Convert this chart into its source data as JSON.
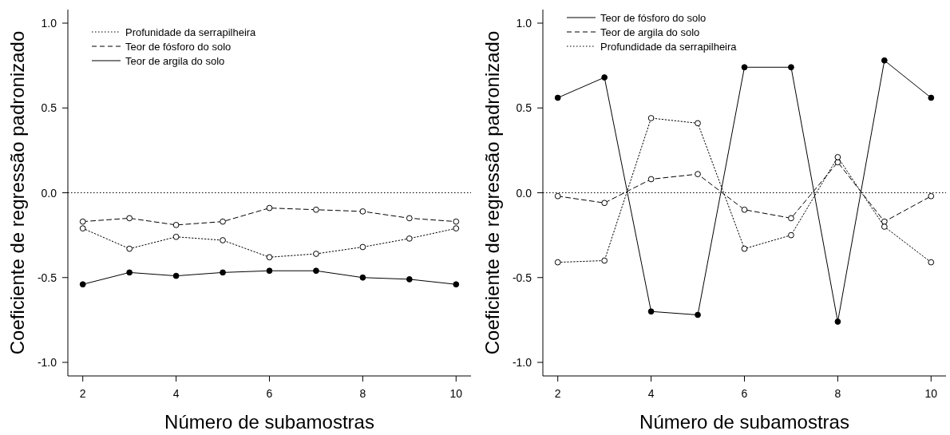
{
  "chart_data": [
    {
      "type": "line",
      "xlabel": "Número de subamostras",
      "ylabel": "Coeficiente de regressão padronizado",
      "x": [
        2,
        3,
        4,
        5,
        6,
        7,
        8,
        9,
        10
      ],
      "xlim": [
        1.68,
        10.32
      ],
      "xticks": [
        2,
        4,
        6,
        8,
        10
      ],
      "ylim": [
        -1.08,
        1.08
      ],
      "yticks": [
        {
          "value": -1,
          "label": "-1.0"
        },
        {
          "value": -0.5,
          "label": "-0.5"
        },
        {
          "value": 0,
          "label": "0.0"
        },
        {
          "value": 0.5,
          "label": "0.5"
        },
        {
          "value": 1,
          "label": "1.0"
        }
      ],
      "grid": false,
      "legend": "top left",
      "marker": "circle",
      "ref_lines": [
        {
          "axis": "y",
          "value": 0,
          "line_style": "dotted",
          "color": "#000000"
        }
      ],
      "series": [
        {
          "name": "Profunidade da serrapilheira",
          "color": "#000000",
          "line_style": "dotted",
          "values": [
            -0.21,
            -0.33,
            -0.26,
            -0.28,
            -0.38,
            -0.36,
            -0.32,
            -0.27,
            -0.21
          ]
        },
        {
          "name": "Teor de fósforo do solo",
          "color": "#000000",
          "line_style": "dashed",
          "values": [
            -0.17,
            -0.15,
            -0.19,
            -0.17,
            -0.09,
            -0.1,
            -0.11,
            -0.15,
            -0.17
          ]
        },
        {
          "name": "Teor de argila do solo",
          "color": "#000000",
          "line_style": "solid",
          "values": [
            -0.54,
            -0.47,
            -0.49,
            -0.47,
            -0.46,
            -0.46,
            -0.5,
            -0.51,
            -0.54
          ]
        }
      ]
    },
    {
      "type": "line",
      "xlabel": "Número de subamostras",
      "ylabel": "Coeficiente de regressão padronizado",
      "x": [
        2,
        3,
        4,
        5,
        6,
        7,
        8,
        9,
        10
      ],
      "xlim": [
        1.68,
        10.32
      ],
      "xticks": [
        2,
        4,
        6,
        8,
        10
      ],
      "ylim": [
        -1.08,
        1.08
      ],
      "yticks": [
        {
          "value": -1,
          "label": "-1.0"
        },
        {
          "value": -0.5,
          "label": "-0.5"
        },
        {
          "value": 0,
          "label": "0.0"
        },
        {
          "value": 0.5,
          "label": "0.5"
        },
        {
          "value": 1,
          "label": "1.0"
        }
      ],
      "grid": false,
      "legend": "top left",
      "marker": "circle",
      "ref_lines": [
        {
          "axis": "y",
          "value": 0,
          "line_style": "dotted",
          "color": "#000000"
        }
      ],
      "series": [
        {
          "name": "Teor de fósforo do solo",
          "color": "#000000",
          "line_style": "solid",
          "values": [
            0.56,
            0.68,
            -0.7,
            -0.72,
            0.74,
            0.74,
            -0.76,
            0.78,
            0.56
          ]
        },
        {
          "name": "Teor de argila do solo",
          "color": "#000000",
          "line_style": "dashed",
          "values": [
            -0.02,
            -0.06,
            0.08,
            0.11,
            -0.1,
            -0.15,
            0.18,
            -0.17,
            -0.02
          ]
        },
        {
          "name": "Profundidade da serrapilheira",
          "color": "#000000",
          "line_style": "dotted",
          "values": [
            -0.41,
            -0.4,
            0.44,
            0.41,
            -0.33,
            -0.25,
            0.21,
            -0.2,
            -0.41
          ]
        }
      ]
    }
  ]
}
